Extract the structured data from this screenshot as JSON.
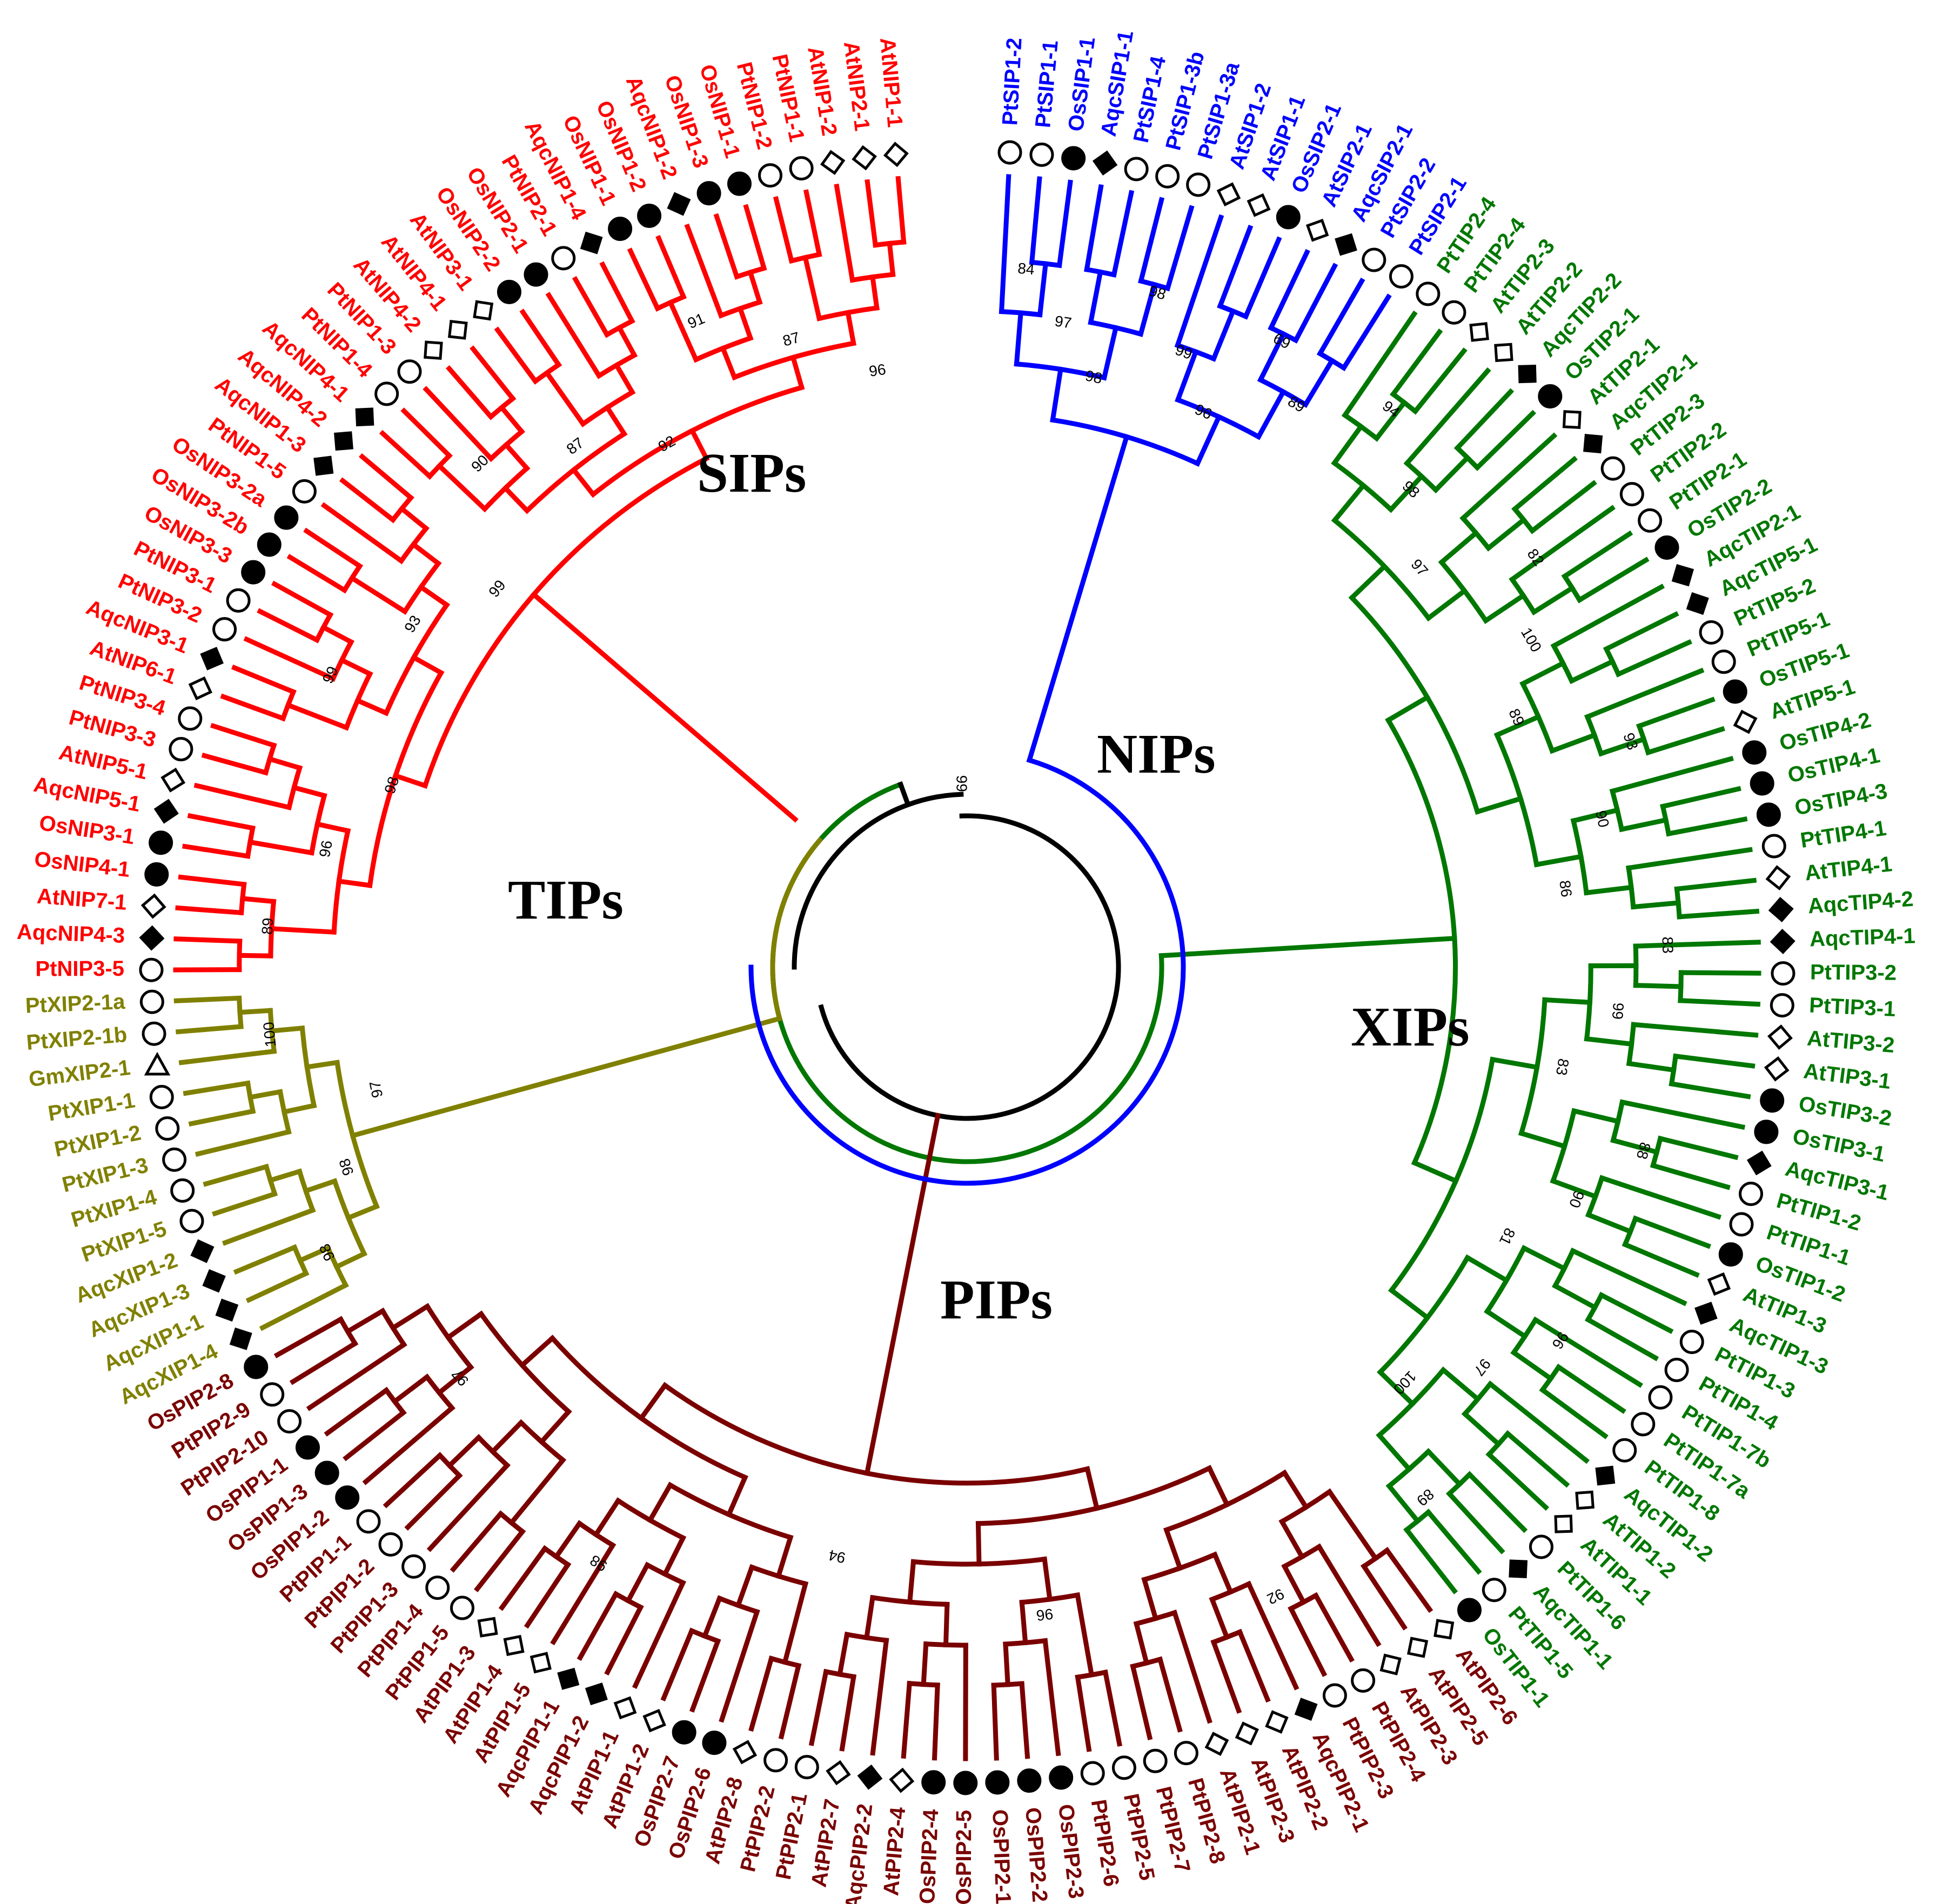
{
  "groups": {
    "SIPs": {
      "label": "SIPs",
      "color": "#0000ff"
    },
    "TIPs": {
      "label": "TIPs",
      "color": "#007700"
    },
    "PIPs": {
      "label": "PIPs",
      "color": "#7a0000"
    },
    "XIPs": {
      "label": "XIPs",
      "color": "#808000"
    },
    "NIPs": {
      "label": "NIPs",
      "color": "#ff0000"
    }
  },
  "root_color": "#000000",
  "marker_legend": {
    "At": "open-diamond",
    "Os": "filled-circle",
    "Pt": "open-circle",
    "Aqc": "filled-diamond",
    "Gm": "open-triangle"
  },
  "leaves": [
    {
      "label": "PtSIP1-2",
      "group": "SIPs",
      "marker": "open-circle"
    },
    {
      "label": "PtSIP1-1",
      "group": "SIPs",
      "marker": "open-circle"
    },
    {
      "label": "OsSIP1-1",
      "group": "SIPs",
      "marker": "filled-circle"
    },
    {
      "label": "AqcSIP1-1",
      "group": "SIPs",
      "marker": "filled-diamond"
    },
    {
      "label": "PtSIP1-4",
      "group": "SIPs",
      "marker": "open-circle"
    },
    {
      "label": "PtSIP1-3b",
      "group": "SIPs",
      "marker": "open-circle"
    },
    {
      "label": "PtSIP1-3a",
      "group": "SIPs",
      "marker": "open-circle"
    },
    {
      "label": "AtSIP1-2",
      "group": "SIPs",
      "marker": "open-diamond"
    },
    {
      "label": "AtSIP1-1",
      "group": "SIPs",
      "marker": "open-diamond"
    },
    {
      "label": "OsSIP2-1",
      "group": "SIPs",
      "marker": "filled-circle"
    },
    {
      "label": "AtSIP2-1",
      "group": "SIPs",
      "marker": "open-diamond"
    },
    {
      "label": "AqcSIP2-1",
      "group": "SIPs",
      "marker": "filled-diamond"
    },
    {
      "label": "PtSIP2-2",
      "group": "SIPs",
      "marker": "open-circle"
    },
    {
      "label": "PtSIP2-1",
      "group": "SIPs",
      "marker": "open-circle"
    },
    {
      "label": "PtTIP2-4",
      "group": "TIPs",
      "marker": "open-circle"
    },
    {
      "label": "PtTIP2-4",
      "group": "TIPs",
      "marker": "open-circle"
    },
    {
      "label": "AtTIP2-3",
      "group": "TIPs",
      "marker": "open-diamond"
    },
    {
      "label": "AtTIP2-2",
      "group": "TIPs",
      "marker": "open-diamond"
    },
    {
      "label": "AqcTIP2-2",
      "group": "TIPs",
      "marker": "filled-diamond"
    },
    {
      "label": "OsTIP2-1",
      "group": "TIPs",
      "marker": "filled-circle"
    },
    {
      "label": "AtTIP2-1",
      "group": "TIPs",
      "marker": "open-diamond"
    },
    {
      "label": "AqcTIP2-1",
      "group": "TIPs",
      "marker": "filled-diamond"
    },
    {
      "label": "PtTIP2-3",
      "group": "TIPs",
      "marker": "open-circle"
    },
    {
      "label": "PtTIP2-2",
      "group": "TIPs",
      "marker": "open-circle"
    },
    {
      "label": "PtTIP2-1",
      "group": "TIPs",
      "marker": "open-circle"
    },
    {
      "label": "OsTIP2-2",
      "group": "TIPs",
      "marker": "filled-circle"
    },
    {
      "label": "AqcTIP2-1",
      "group": "TIPs",
      "marker": "filled-diamond"
    },
    {
      "label": "AqcTIP5-1",
      "group": "TIPs",
      "marker": "filled-diamond"
    },
    {
      "label": "PtTIP5-2",
      "group": "TIPs",
      "marker": "open-circle"
    },
    {
      "label": "PtTIP5-1",
      "group": "TIPs",
      "marker": "open-circle"
    },
    {
      "label": "OsTIP5-1",
      "group": "TIPs",
      "marker": "filled-circle"
    },
    {
      "label": "AtTIP5-1",
      "group": "TIPs",
      "marker": "open-diamond"
    },
    {
      "label": "OsTIP4-2",
      "group": "TIPs",
      "marker": "filled-circle"
    },
    {
      "label": "OsTIP4-1",
      "group": "TIPs",
      "marker": "filled-circle"
    },
    {
      "label": "OsTIP4-3",
      "group": "TIPs",
      "marker": "filled-circle"
    },
    {
      "label": "PtTIP4-1",
      "group": "TIPs",
      "marker": "open-circle"
    },
    {
      "label": "AtTIP4-1",
      "group": "TIPs",
      "marker": "open-diamond"
    },
    {
      "label": "AqcTIP4-2",
      "group": "TIPs",
      "marker": "filled-diamond"
    },
    {
      "label": "AqcTIP4-1",
      "group": "TIPs",
      "marker": "filled-diamond"
    },
    {
      "label": "PtTIP3-2",
      "group": "TIPs",
      "marker": "open-circle"
    },
    {
      "label": "PtTIP3-1",
      "group": "TIPs",
      "marker": "open-circle"
    },
    {
      "label": "AtTIP3-2",
      "group": "TIPs",
      "marker": "open-diamond"
    },
    {
      "label": "AtTIP3-1",
      "group": "TIPs",
      "marker": "open-diamond"
    },
    {
      "label": "OsTIP3-2",
      "group": "TIPs",
      "marker": "filled-circle"
    },
    {
      "label": "OsTIP3-1",
      "group": "TIPs",
      "marker": "filled-circle"
    },
    {
      "label": "AqcTIP3-1",
      "group": "TIPs",
      "marker": "filled-diamond"
    },
    {
      "label": "PtTIP1-2",
      "group": "TIPs",
      "marker": "open-circle"
    },
    {
      "label": "PtTIP1-1",
      "group": "TIPs",
      "marker": "open-circle"
    },
    {
      "label": "OsTIP1-2",
      "group": "TIPs",
      "marker": "filled-circle"
    },
    {
      "label": "AtTIP1-3",
      "group": "TIPs",
      "marker": "open-diamond"
    },
    {
      "label": "AqcTIP1-3",
      "group": "TIPs",
      "marker": "filled-diamond"
    },
    {
      "label": "PtTIP1-3",
      "group": "TIPs",
      "marker": "open-circle"
    },
    {
      "label": "PtTIP1-4",
      "group": "TIPs",
      "marker": "open-circle"
    },
    {
      "label": "PtTIP1-7b",
      "group": "TIPs",
      "marker": "open-circle"
    },
    {
      "label": "PtTIP1-7a",
      "group": "TIPs",
      "marker": "open-circle"
    },
    {
      "label": "PtTIP1-8",
      "group": "TIPs",
      "marker": "open-circle"
    },
    {
      "label": "AqcTIP1-2",
      "group": "TIPs",
      "marker": "filled-diamond"
    },
    {
      "label": "AtTIP1-2",
      "group": "TIPs",
      "marker": "open-diamond"
    },
    {
      "label": "AtTIP1-1",
      "group": "TIPs",
      "marker": "open-diamond"
    },
    {
      "label": "PtTIP1-6",
      "group": "TIPs",
      "marker": "open-circle"
    },
    {
      "label": "AqcTIP1-1",
      "group": "TIPs",
      "marker": "filled-diamond"
    },
    {
      "label": "PtTIP1-5",
      "group": "TIPs",
      "marker": "open-circle"
    },
    {
      "label": "OsTIP1-1",
      "group": "TIPs",
      "marker": "filled-circle"
    },
    {
      "label": "AtPIP2-6",
      "group": "PIPs",
      "marker": "open-diamond"
    },
    {
      "label": "AtPIP2-5",
      "group": "PIPs",
      "marker": "open-diamond"
    },
    {
      "label": "AtPIP2-3",
      "group": "PIPs",
      "marker": "open-diamond"
    },
    {
      "label": "PtPIP2-4",
      "group": "PIPs",
      "marker": "open-circle"
    },
    {
      "label": "PtPIP2-3",
      "group": "PIPs",
      "marker": "open-circle"
    },
    {
      "label": "AqcPIP2-1",
      "group": "PIPs",
      "marker": "filled-diamond"
    },
    {
      "label": "AtPIP2-2",
      "group": "PIPs",
      "marker": "open-diamond"
    },
    {
      "label": "AtPIP2-3",
      "group": "PIPs",
      "marker": "open-diamond"
    },
    {
      "label": "AtPIP2-1",
      "group": "PIPs",
      "marker": "open-diamond"
    },
    {
      "label": "PtPIP2-8",
      "group": "PIPs",
      "marker": "open-circle"
    },
    {
      "label": "PtPIP2-7",
      "group": "PIPs",
      "marker": "open-circle"
    },
    {
      "label": "PtPIP2-5",
      "group": "PIPs",
      "marker": "open-circle"
    },
    {
      "label": "PtPIP2-6",
      "group": "PIPs",
      "marker": "open-circle"
    },
    {
      "label": "OsPIP2-3",
      "group": "PIPs",
      "marker": "filled-circle"
    },
    {
      "label": "OsPIP2-2",
      "group": "PIPs",
      "marker": "filled-circle"
    },
    {
      "label": "OsPIP2-1",
      "group": "PIPs",
      "marker": "filled-circle"
    },
    {
      "label": "OsPIP2-5",
      "group": "PIPs",
      "marker": "filled-circle"
    },
    {
      "label": "OsPIP2-4",
      "group": "PIPs",
      "marker": "filled-circle"
    },
    {
      "label": "AtPIP2-4",
      "group": "PIPs",
      "marker": "open-diamond"
    },
    {
      "label": "AqcPIP2-2",
      "group": "PIPs",
      "marker": "filled-diamond"
    },
    {
      "label": "AtPIP2-7",
      "group": "PIPs",
      "marker": "open-diamond"
    },
    {
      "label": "PtPIP2-1",
      "group": "PIPs",
      "marker": "open-circle"
    },
    {
      "label": "PtPIP2-2",
      "group": "PIPs",
      "marker": "open-circle"
    },
    {
      "label": "AtPIP2-8",
      "group": "PIPs",
      "marker": "open-diamond"
    },
    {
      "label": "OsPIP2-6",
      "group": "PIPs",
      "marker": "filled-circle"
    },
    {
      "label": "OsPIP2-7",
      "group": "PIPs",
      "marker": "filled-circle"
    },
    {
      "label": "AtPIP1-2",
      "group": "PIPs",
      "marker": "open-diamond"
    },
    {
      "label": "AtPIP1-1",
      "group": "PIPs",
      "marker": "open-diamond"
    },
    {
      "label": "AqcPIP1-2",
      "group": "PIPs",
      "marker": "filled-diamond"
    },
    {
      "label": "AqcPIP1-1",
      "group": "PIPs",
      "marker": "filled-diamond"
    },
    {
      "label": "AtPIP1-5",
      "group": "PIPs",
      "marker": "open-diamond"
    },
    {
      "label": "AtPIP1-4",
      "group": "PIPs",
      "marker": "open-diamond"
    },
    {
      "label": "AtPIP1-3",
      "group": "PIPs",
      "marker": "open-diamond"
    },
    {
      "label": "PtPIP1-5",
      "group": "PIPs",
      "marker": "open-circle"
    },
    {
      "label": "PtPIP1-4",
      "group": "PIPs",
      "marker": "open-circle"
    },
    {
      "label": "PtPIP1-3",
      "group": "PIPs",
      "marker": "open-circle"
    },
    {
      "label": "PtPIP1-2",
      "group": "PIPs",
      "marker": "open-circle"
    },
    {
      "label": "PtPIP1-1",
      "group": "PIPs",
      "marker": "open-circle"
    },
    {
      "label": "OsPIP1-2",
      "group": "PIPs",
      "marker": "filled-circle"
    },
    {
      "label": "OsPIP1-3",
      "group": "PIPs",
      "marker": "filled-circle"
    },
    {
      "label": "OsPIP1-1",
      "group": "PIPs",
      "marker": "filled-circle"
    },
    {
      "label": "PtPIP2-10",
      "group": "PIPs",
      "marker": "open-circle"
    },
    {
      "label": "PtPIP2-9",
      "group": "PIPs",
      "marker": "open-circle"
    },
    {
      "label": "OsPIP2-8",
      "group": "PIPs",
      "marker": "filled-circle"
    },
    {
      "label": "AqcXIP1-4",
      "group": "XIPs",
      "marker": "filled-diamond"
    },
    {
      "label": "AqcXIP1-1",
      "group": "XIPs",
      "marker": "filled-diamond"
    },
    {
      "label": "AqcXIP1-3",
      "group": "XIPs",
      "marker": "filled-diamond"
    },
    {
      "label": "AqcXIP1-2",
      "group": "XIPs",
      "marker": "filled-diamond"
    },
    {
      "label": "PtXIP1-5",
      "group": "XIPs",
      "marker": "open-circle"
    },
    {
      "label": "PtXIP1-4",
      "group": "XIPs",
      "marker": "open-circle"
    },
    {
      "label": "PtXIP1-3",
      "group": "XIPs",
      "marker": "open-circle"
    },
    {
      "label": "PtXIP1-2",
      "group": "XIPs",
      "marker": "open-circle"
    },
    {
      "label": "PtXIP1-1",
      "group": "XIPs",
      "marker": "open-circle"
    },
    {
      "label": "GmXIP2-1",
      "group": "XIPs",
      "marker": "open-triangle"
    },
    {
      "label": "PtXIP2-1b",
      "group": "XIPs",
      "marker": "open-circle"
    },
    {
      "label": "PtXIP2-1a",
      "group": "XIPs",
      "marker": "open-circle"
    },
    {
      "label": "PtNIP3-5",
      "group": "NIPs",
      "marker": "open-circle"
    },
    {
      "label": "AqcNIP4-3",
      "group": "NIPs",
      "marker": "filled-diamond"
    },
    {
      "label": "AtNIP7-1",
      "group": "NIPs",
      "marker": "open-diamond"
    },
    {
      "label": "OsNIP4-1",
      "group": "NIPs",
      "marker": "filled-circle"
    },
    {
      "label": "OsNIP3-1",
      "group": "NIPs",
      "marker": "filled-circle"
    },
    {
      "label": "AqcNIP5-1",
      "group": "NIPs",
      "marker": "filled-diamond"
    },
    {
      "label": "AtNIP5-1",
      "group": "NIPs",
      "marker": "open-diamond"
    },
    {
      "label": "PtNIP3-3",
      "group": "NIPs",
      "marker": "open-circle"
    },
    {
      "label": "PtNIP3-4",
      "group": "NIPs",
      "marker": "open-circle"
    },
    {
      "label": "AtNIP6-1",
      "group": "NIPs",
      "marker": "open-diamond"
    },
    {
      "label": "AqcNIP3-1",
      "group": "NIPs",
      "marker": "filled-diamond"
    },
    {
      "label": "PtNIP3-2",
      "group": "NIPs",
      "marker": "open-circle"
    },
    {
      "label": "PtNIP3-1",
      "group": "NIPs",
      "marker": "open-circle"
    },
    {
      "label": "OsNIP3-3",
      "group": "NIPs",
      "marker": "filled-circle"
    },
    {
      "label": "OsNIP3-2b",
      "group": "NIPs",
      "marker": "filled-circle"
    },
    {
      "label": "OsNIP3-2a",
      "group": "NIPs",
      "marker": "filled-circle"
    },
    {
      "label": "PtNIP1-5",
      "group": "NIPs",
      "marker": "open-circle"
    },
    {
      "label": "AqcNIP1-3",
      "group": "NIPs",
      "marker": "filled-diamond"
    },
    {
      "label": "AqcNIP4-2",
      "group": "NIPs",
      "marker": "filled-diamond"
    },
    {
      "label": "AqcNIP4-1",
      "group": "NIPs",
      "marker": "filled-diamond"
    },
    {
      "label": "PtNIP1-4",
      "group": "NIPs",
      "marker": "open-circle"
    },
    {
      "label": "PtNIP1-3",
      "group": "NIPs",
      "marker": "open-circle"
    },
    {
      "label": "AtNIP4-2",
      "group": "NIPs",
      "marker": "open-diamond"
    },
    {
      "label": "AtNIP4-1",
      "group": "NIPs",
      "marker": "open-diamond"
    },
    {
      "label": "AtNIP3-1",
      "group": "NIPs",
      "marker": "open-diamond"
    },
    {
      "label": "OsNIP2-2",
      "group": "NIPs",
      "marker": "filled-circle"
    },
    {
      "label": "OsNIP2-1",
      "group": "NIPs",
      "marker": "filled-circle"
    },
    {
      "label": "PtNIP2-1",
      "group": "NIPs",
      "marker": "open-circle"
    },
    {
      "label": "AqcNIP1-4",
      "group": "NIPs",
      "marker": "filled-diamond"
    },
    {
      "label": "OsNIP1-1",
      "group": "NIPs",
      "marker": "filled-circle"
    },
    {
      "label": "OsNIP1-2",
      "group": "NIPs",
      "marker": "filled-circle"
    },
    {
      "label": "AqcNIP1-2",
      "group": "NIPs",
      "marker": "filled-diamond"
    },
    {
      "label": "OsNIP1-3",
      "group": "NIPs",
      "marker": "filled-circle"
    },
    {
      "label": "OsNIP1-1",
      "group": "NIPs",
      "marker": "filled-circle"
    },
    {
      "label": "PtNIP1-2",
      "group": "NIPs",
      "marker": "open-circle"
    },
    {
      "label": "PtNIP1-1",
      "group": "NIPs",
      "marker": "open-circle"
    },
    {
      "label": "AtNIP1-2",
      "group": "NIPs",
      "marker": "open-diamond"
    },
    {
      "label": "AtNIP2-1",
      "group": "NIPs",
      "marker": "open-diamond"
    },
    {
      "label": "AtNIP1-1",
      "group": "NIPs",
      "marker": "open-diamond"
    }
  ],
  "bootstrap_values": {
    "SIPs": [
      "84",
      "97",
      "98",
      "98",
      "99",
      "96",
      "69",
      "89"
    ],
    "TIPs": [
      "94",
      "98",
      "97",
      "82",
      "100",
      "89",
      "93",
      "90",
      "86",
      "83",
      "99",
      "83",
      "88",
      "90",
      "81",
      "96",
      "97",
      "100",
      "89"
    ],
    "PIPs": [
      "92",
      "96",
      "94",
      "98",
      "97"
    ],
    "XIPs": [
      "98",
      "98",
      "97",
      "100"
    ],
    "NIPs": [
      "89",
      "96",
      "98",
      "99",
      "93",
      "99",
      "90",
      "87",
      "92",
      "91",
      "87",
      "96"
    ],
    "root": [
      "99"
    ]
  }
}
